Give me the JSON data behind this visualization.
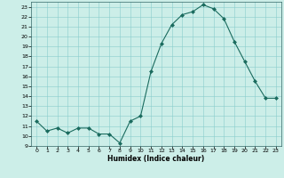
{
  "x": [
    0,
    1,
    2,
    3,
    4,
    5,
    6,
    7,
    8,
    9,
    10,
    11,
    12,
    13,
    14,
    15,
    16,
    17,
    18,
    19,
    20,
    21,
    22,
    23
  ],
  "y": [
    11.5,
    10.5,
    10.8,
    10.3,
    10.8,
    10.8,
    10.2,
    10.2,
    9.3,
    11.5,
    12.0,
    16.5,
    19.3,
    21.2,
    22.2,
    22.5,
    23.2,
    22.8,
    21.8,
    19.5,
    17.5,
    15.5,
    13.8,
    13.8
  ],
  "xlabel": "Humidex (Indice chaleur)",
  "ylim": [
    9,
    23.5
  ],
  "xlim": [
    -0.5,
    23.5
  ],
  "yticks": [
    9,
    10,
    11,
    12,
    13,
    14,
    15,
    16,
    17,
    18,
    19,
    20,
    21,
    22,
    23
  ],
  "xticks": [
    0,
    1,
    2,
    3,
    4,
    5,
    6,
    7,
    8,
    9,
    10,
    11,
    12,
    13,
    14,
    15,
    16,
    17,
    18,
    19,
    20,
    21,
    22,
    23
  ],
  "line_color": "#1a6b5e",
  "marker_color": "#1a6b5e",
  "bg_color": "#cceee8",
  "grid_color": "#88cccc",
  "text_color": "#000000",
  "spine_color": "#336666"
}
